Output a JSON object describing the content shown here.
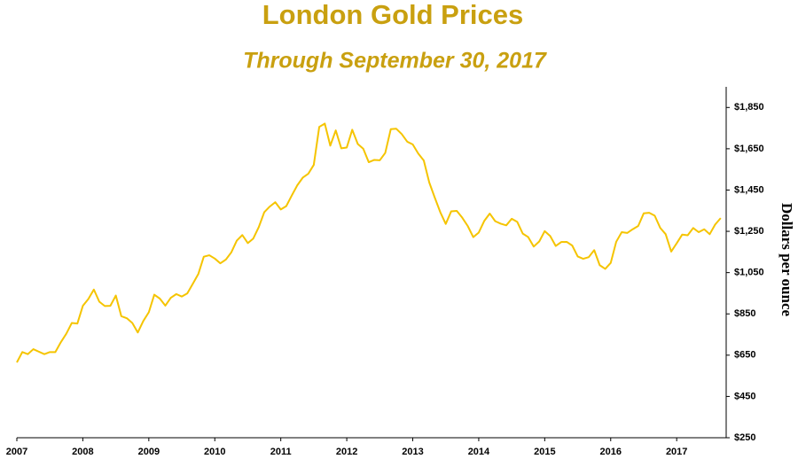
{
  "chart_data": {
    "type": "line",
    "title": "London Gold Prices",
    "subtitle": "Through September 30, 2017",
    "y_label": "Dollars per ounce",
    "title_color": "#c9a010",
    "color": "#f5c400",
    "x": [
      2007,
      2007.083,
      2007.167,
      2007.25,
      2007.333,
      2007.417,
      2007.5,
      2007.583,
      2007.667,
      2007.75,
      2007.833,
      2007.917,
      2008,
      2008.083,
      2008.167,
      2008.25,
      2008.333,
      2008.417,
      2008.5,
      2008.583,
      2008.667,
      2008.75,
      2008.833,
      2008.917,
      2009,
      2009.083,
      2009.167,
      2009.25,
      2009.333,
      2009.417,
      2009.5,
      2009.583,
      2009.667,
      2009.75,
      2009.833,
      2009.917,
      2010,
      2010.083,
      2010.167,
      2010.25,
      2010.333,
      2010.417,
      2010.5,
      2010.583,
      2010.667,
      2010.75,
      2010.833,
      2010.917,
      2011,
      2011.083,
      2011.167,
      2011.25,
      2011.333,
      2011.417,
      2011.5,
      2011.583,
      2011.667,
      2011.75,
      2011.833,
      2011.917,
      2012,
      2012.083,
      2012.167,
      2012.25,
      2012.333,
      2012.417,
      2012.5,
      2012.583,
      2012.667,
      2012.75,
      2012.833,
      2012.917,
      2013,
      2013.083,
      2013.167,
      2013.25,
      2013.333,
      2013.417,
      2013.5,
      2013.583,
      2013.667,
      2013.75,
      2013.833,
      2013.917,
      2014,
      2014.083,
      2014.167,
      2014.25,
      2014.333,
      2014.417,
      2014.5,
      2014.583,
      2014.667,
      2014.75,
      2014.833,
      2014.917,
      2015,
      2015.083,
      2015.167,
      2015.25,
      2015.333,
      2015.417,
      2015.5,
      2015.583,
      2015.667,
      2015.75,
      2015.833,
      2015.917,
      2016,
      2016.083,
      2016.167,
      2016.25,
      2016.333,
      2016.417,
      2016.5,
      2016.583,
      2016.667,
      2016.75,
      2016.833,
      2016.917,
      2017,
      2017.083,
      2017.167,
      2017.25,
      2017.333,
      2017.417,
      2017.5,
      2017.583,
      2017.667
    ],
    "values": [
      615,
      665,
      655,
      679,
      667,
      655,
      665,
      665,
      713,
      754,
      806,
      803,
      889,
      922,
      968,
      909,
      888,
      889,
      939,
      839,
      829,
      806,
      760,
      816,
      858,
      943,
      924,
      890,
      928,
      946,
      934,
      949,
      996,
      1043,
      1127,
      1134,
      1118,
      1095,
      1113,
      1148,
      1205,
      1232,
      1193,
      1215,
      1271,
      1343,
      1370,
      1391,
      1356,
      1372,
      1424,
      1473,
      1510,
      1529,
      1572,
      1756,
      1772,
      1665,
      1739,
      1652,
      1656,
      1742,
      1673,
      1650,
      1585,
      1596,
      1594,
      1630,
      1745,
      1747,
      1721,
      1684,
      1671,
      1627,
      1593,
      1487,
      1414,
      1343,
      1286,
      1347,
      1349,
      1316,
      1276,
      1222,
      1244,
      1300,
      1336,
      1299,
      1287,
      1279,
      1311,
      1296,
      1239,
      1222,
      1176,
      1201,
      1251,
      1227,
      1179,
      1198,
      1199,
      1181,
      1128,
      1117,
      1125,
      1159,
      1086,
      1068,
      1097,
      1199,
      1246,
      1242,
      1260,
      1276,
      1337,
      1340,
      1326,
      1267,
      1236,
      1152,
      1192,
      1234,
      1231,
      1266,
      1246,
      1260,
      1236,
      1283,
      1314
    ],
    "xlim": [
      2007,
      2017.75
    ],
    "xticks": [
      2007,
      2008,
      2009,
      2010,
      2011,
      2012,
      2013,
      2014,
      2015,
      2016,
      2017
    ],
    "ylim": [
      250,
      1950
    ],
    "yticks": [
      {
        "value": 250,
        "label": "$250"
      },
      {
        "value": 450,
        "label": "$450"
      },
      {
        "value": 650,
        "label": "$650"
      },
      {
        "value": 850,
        "label": "$850"
      },
      {
        "value": 1050,
        "label": "$1,050"
      },
      {
        "value": 1250,
        "label": "$1,250"
      },
      {
        "value": 1450,
        "label": "$1,450"
      },
      {
        "value": 1650,
        "label": "$1,650"
      },
      {
        "value": 1850,
        "label": "$1,850"
      }
    ],
    "y_axis_side": "right",
    "grid": false
  }
}
